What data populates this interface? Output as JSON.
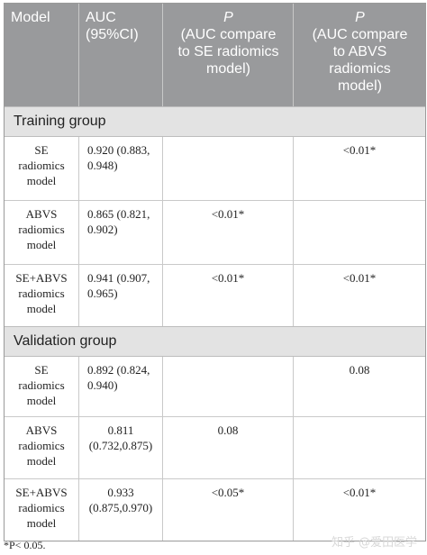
{
  "header": {
    "model": "Model",
    "auc": "AUC\n(95%CI)",
    "p_se_symbol": "P",
    "p_se_text": "(AUC compare\nto SE radiomics\nmodel)",
    "p_abvs_symbol": "P",
    "p_abvs_text": "(AUC compare\nto ABVS\nradiomics\nmodel)"
  },
  "groups": [
    {
      "title": "Training group",
      "rows": [
        {
          "model": "SE\nradiomics\nmodel",
          "auc": "0.920 (0.883,\n0.948)",
          "p_se": "",
          "p_abvs": "<0.01*"
        },
        {
          "model": "ABVS\nradiomics\nmodel",
          "auc": "0.865 (0.821,\n0.902)",
          "p_se": "<0.01*",
          "p_abvs": ""
        },
        {
          "model": "SE+ABVS\nradiomics\nmodel",
          "auc": "0.941 (0.907,\n0.965)",
          "p_se": "<0.01*",
          "p_abvs": "<0.01*"
        }
      ]
    },
    {
      "title": "Validation group",
      "rows": [
        {
          "model": "SE\nradiomics\nmodel",
          "auc": "0.892 (0.824,\n0.940)",
          "p_se": "",
          "p_abvs": "0.08"
        },
        {
          "model": "ABVS\nradiomics\nmodel",
          "auc": "0.811\n(0.732,0.875)",
          "p_se": "0.08",
          "p_abvs": ""
        },
        {
          "model": "SE+ABVS\nradiomics\nmodel",
          "auc": "0.933\n(0.875,0.970)",
          "p_se": "<0.05*",
          "p_abvs": "<0.01*"
        }
      ]
    }
  ],
  "footnote": "*P< 0.05.",
  "watermark": "知乎 @爱田医学"
}
